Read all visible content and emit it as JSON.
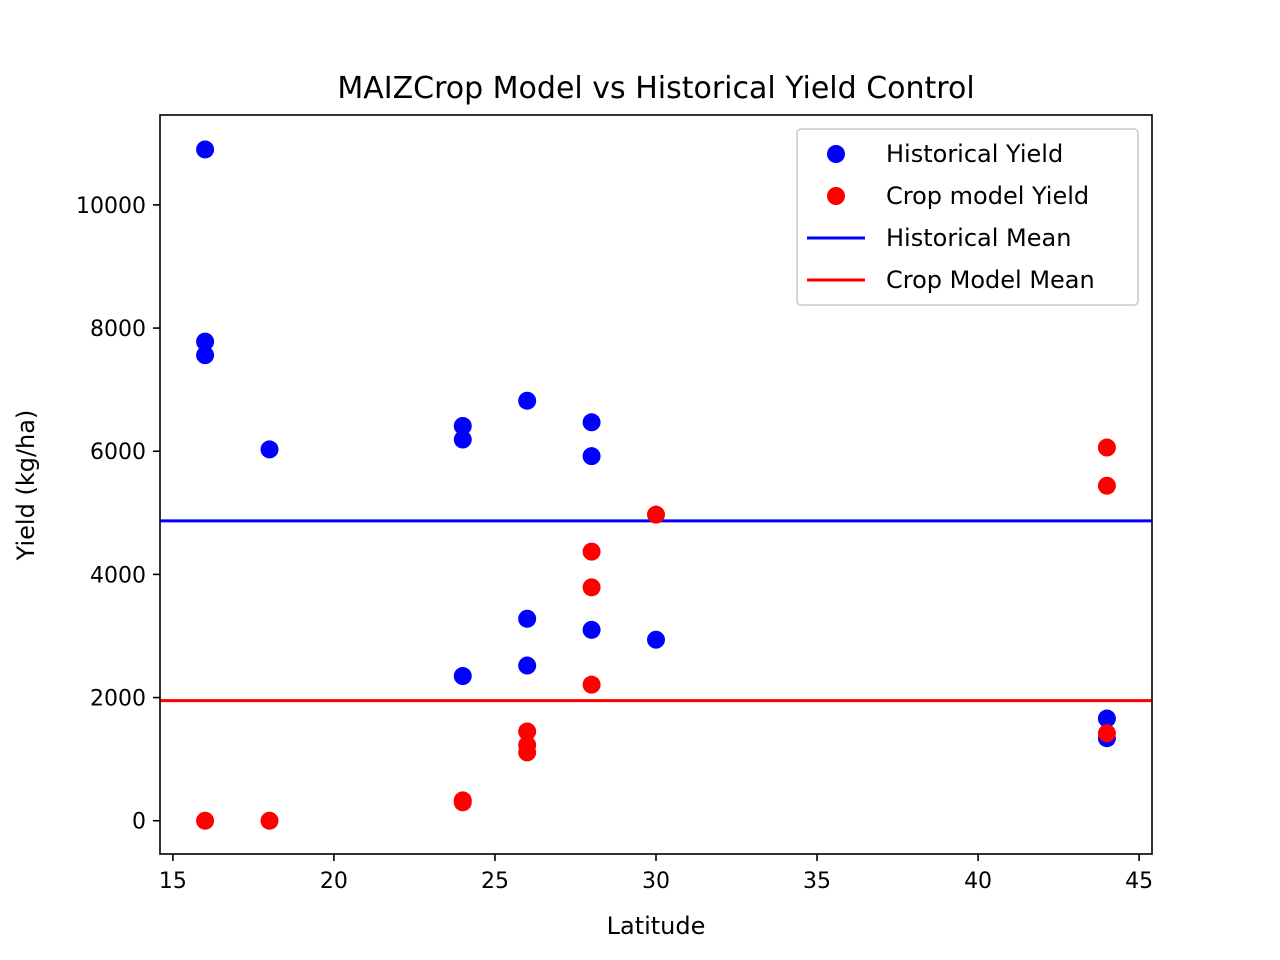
{
  "chart_data": {
    "type": "scatter",
    "title": "MAIZCrop Model vs Historical Yield Control",
    "xlabel": "Latitude",
    "ylabel": "Yield (kg/ha)",
    "xlim": [
      14.6,
      45.4
    ],
    "ylim": [
      -540,
      11460
    ],
    "xticks": [
      15,
      20,
      25,
      30,
      35,
      40,
      45
    ],
    "yticks": [
      0,
      2000,
      4000,
      6000,
      8000,
      10000
    ],
    "grid": false,
    "legend_position": "upper right",
    "series": [
      {
        "name": "Historical Yield",
        "kind": "scatter",
        "color": "#0000ff",
        "points": [
          [
            16,
            10900
          ],
          [
            16,
            7780
          ],
          [
            16,
            7560
          ],
          [
            18,
            6030
          ],
          [
            24,
            6410
          ],
          [
            24,
            6190
          ],
          [
            24,
            2350
          ],
          [
            26,
            6820
          ],
          [
            26,
            3280
          ],
          [
            26,
            2520
          ],
          [
            28,
            6470
          ],
          [
            28,
            5920
          ],
          [
            28,
            3100
          ],
          [
            30,
            2940
          ],
          [
            44,
            1660
          ],
          [
            44,
            1340
          ]
        ]
      },
      {
        "name": "Crop model Yield",
        "kind": "scatter",
        "color": "#ff0000",
        "points": [
          [
            16,
            0
          ],
          [
            18,
            0
          ],
          [
            24,
            330
          ],
          [
            24,
            300
          ],
          [
            26,
            1450
          ],
          [
            26,
            1230
          ],
          [
            26,
            1110
          ],
          [
            28,
            4370
          ],
          [
            28,
            3790
          ],
          [
            28,
            2210
          ],
          [
            30,
            4970
          ],
          [
            44,
            6060
          ],
          [
            44,
            5440
          ],
          [
            44,
            1420
          ]
        ]
      },
      {
        "name": "Historical Mean",
        "kind": "hline",
        "color": "#0000ff",
        "value": 4870
      },
      {
        "name": "Crop Model Mean",
        "kind": "hline",
        "color": "#ff0000",
        "value": 1950
      }
    ]
  }
}
